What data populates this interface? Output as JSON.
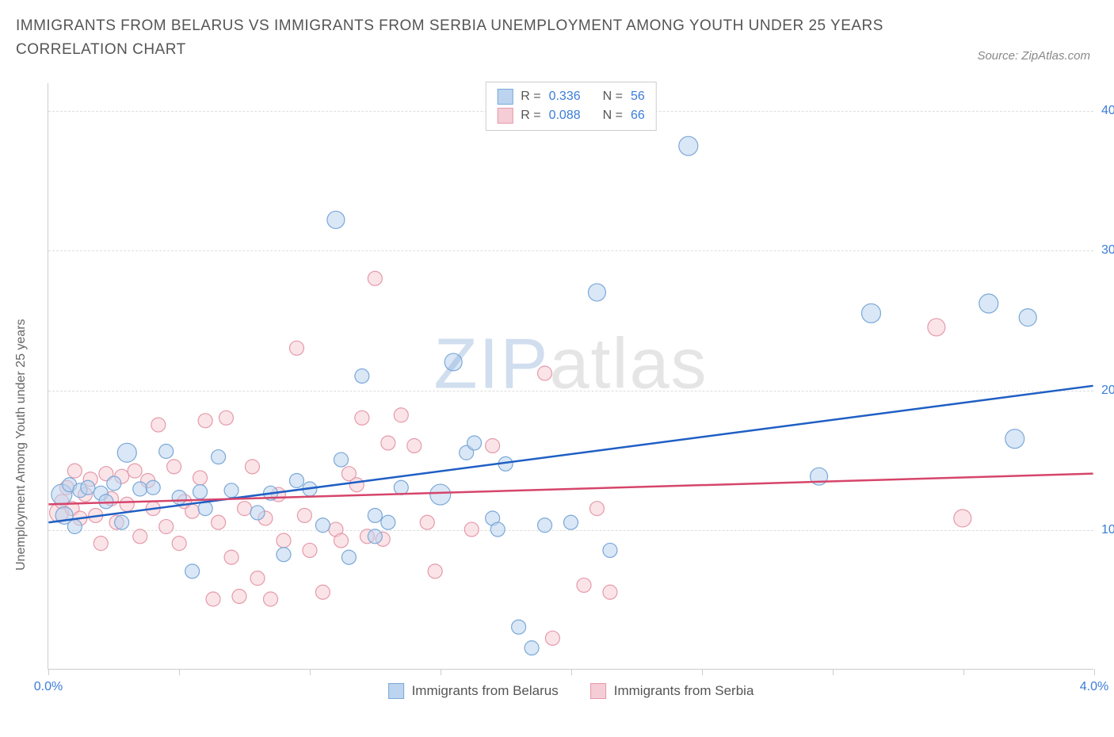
{
  "title": "IMMIGRANTS FROM BELARUS VS IMMIGRANTS FROM SERBIA UNEMPLOYMENT AMONG YOUTH UNDER 25 YEARS CORRELATION CHART",
  "source_label": "Source: ZipAtlas.com",
  "y_axis_label": "Unemployment Among Youth under 25 years",
  "watermark": {
    "zip": "ZIP",
    "atlas": "atlas"
  },
  "chart": {
    "type": "scatter",
    "xlim": [
      0.0,
      4.0
    ],
    "ylim": [
      0.0,
      42.0
    ],
    "x_ticks": [
      0.0,
      0.5,
      1.0,
      1.5,
      2.0,
      2.5,
      3.0,
      3.5,
      4.0
    ],
    "x_tick_labels": [
      "0.0%",
      "",
      "",
      "",
      "",
      "",
      "",
      "",
      "4.0%"
    ],
    "y_gridlines": [
      10.0,
      20.0,
      30.0,
      40.0
    ],
    "y_tick_labels": [
      "10.0%",
      "20.0%",
      "30.0%",
      "40.0%"
    ],
    "background_color": "#ffffff",
    "grid_color": "#dddddd",
    "axis_color": "#cccccc",
    "marker_radius": 9,
    "marker_radius_large": 13,
    "marker_opacity": 0.55,
    "line_width": 2.5,
    "series": [
      {
        "key": "belarus",
        "label": "Immigrants from Belarus",
        "color_fill": "#bcd4ef",
        "color_stroke": "#7aa8d8",
        "line_color": "#1f5fc4",
        "R": "0.336",
        "N": "56",
        "trend": {
          "x1": 0.0,
          "y1": 10.5,
          "x2": 4.0,
          "y2": 20.3
        },
        "points": [
          {
            "x": 0.05,
            "y": 12.5,
            "r": 13
          },
          {
            "x": 0.06,
            "y": 11.0,
            "r": 11
          },
          {
            "x": 0.08,
            "y": 13.2
          },
          {
            "x": 0.1,
            "y": 10.2
          },
          {
            "x": 0.12,
            "y": 12.8
          },
          {
            "x": 0.15,
            "y": 13.0
          },
          {
            "x": 0.2,
            "y": 12.6
          },
          {
            "x": 0.22,
            "y": 12.0
          },
          {
            "x": 0.25,
            "y": 13.3
          },
          {
            "x": 0.28,
            "y": 10.5
          },
          {
            "x": 0.3,
            "y": 15.5,
            "r": 12
          },
          {
            "x": 0.35,
            "y": 12.9
          },
          {
            "x": 0.4,
            "y": 13.0
          },
          {
            "x": 0.45,
            "y": 15.6
          },
          {
            "x": 0.5,
            "y": 12.3
          },
          {
            "x": 0.55,
            "y": 7.0
          },
          {
            "x": 0.58,
            "y": 12.7
          },
          {
            "x": 0.6,
            "y": 11.5
          },
          {
            "x": 0.65,
            "y": 15.2
          },
          {
            "x": 0.7,
            "y": 12.8
          },
          {
            "x": 0.8,
            "y": 11.2
          },
          {
            "x": 0.85,
            "y": 12.6
          },
          {
            "x": 0.9,
            "y": 8.2
          },
          {
            "x": 0.95,
            "y": 13.5
          },
          {
            "x": 1.0,
            "y": 12.9
          },
          {
            "x": 1.05,
            "y": 10.3
          },
          {
            "x": 1.1,
            "y": 32.2,
            "r": 11
          },
          {
            "x": 1.12,
            "y": 15.0
          },
          {
            "x": 1.15,
            "y": 8.0
          },
          {
            "x": 1.2,
            "y": 21.0
          },
          {
            "x": 1.25,
            "y": 9.5
          },
          {
            "x": 1.25,
            "y": 11.0
          },
          {
            "x": 1.3,
            "y": 10.5
          },
          {
            "x": 1.35,
            "y": 13.0
          },
          {
            "x": 1.5,
            "y": 12.5,
            "r": 13
          },
          {
            "x": 1.55,
            "y": 22.0,
            "r": 11
          },
          {
            "x": 1.6,
            "y": 15.5
          },
          {
            "x": 1.63,
            "y": 16.2
          },
          {
            "x": 1.7,
            "y": 10.8
          },
          {
            "x": 1.72,
            "y": 10.0
          },
          {
            "x": 1.75,
            "y": 14.7
          },
          {
            "x": 1.8,
            "y": 3.0
          },
          {
            "x": 1.85,
            "y": 1.5
          },
          {
            "x": 1.9,
            "y": 10.3
          },
          {
            "x": 2.0,
            "y": 10.5
          },
          {
            "x": 2.1,
            "y": 27.0,
            "r": 11
          },
          {
            "x": 2.15,
            "y": 8.5
          },
          {
            "x": 2.45,
            "y": 37.5,
            "r": 12
          },
          {
            "x": 2.95,
            "y": 13.8,
            "r": 11
          },
          {
            "x": 3.15,
            "y": 25.5,
            "r": 12
          },
          {
            "x": 3.6,
            "y": 26.2,
            "r": 12
          },
          {
            "x": 3.7,
            "y": 16.5,
            "r": 12
          },
          {
            "x": 3.75,
            "y": 25.2,
            "r": 11
          }
        ]
      },
      {
        "key": "serbia",
        "label": "Immigrants from Serbia",
        "color_fill": "#f5cdd6",
        "color_stroke": "#e59aaa",
        "line_color": "#d6456b",
        "R": "0.088",
        "N": "66",
        "trend": {
          "x1": 0.0,
          "y1": 11.8,
          "x2": 4.0,
          "y2": 14.0
        },
        "points": [
          {
            "x": 0.04,
            "y": 11.2,
            "r": 12
          },
          {
            "x": 0.05,
            "y": 12.0
          },
          {
            "x": 0.07,
            "y": 13.0
          },
          {
            "x": 0.09,
            "y": 11.5
          },
          {
            "x": 0.1,
            "y": 14.2
          },
          {
            "x": 0.12,
            "y": 10.8
          },
          {
            "x": 0.14,
            "y": 12.5
          },
          {
            "x": 0.16,
            "y": 13.6
          },
          {
            "x": 0.18,
            "y": 11.0
          },
          {
            "x": 0.2,
            "y": 9.0
          },
          {
            "x": 0.22,
            "y": 14.0
          },
          {
            "x": 0.24,
            "y": 12.2
          },
          {
            "x": 0.26,
            "y": 10.5
          },
          {
            "x": 0.28,
            "y": 13.8
          },
          {
            "x": 0.3,
            "y": 11.8
          },
          {
            "x": 0.33,
            "y": 14.2
          },
          {
            "x": 0.35,
            "y": 9.5
          },
          {
            "x": 0.38,
            "y": 13.5
          },
          {
            "x": 0.4,
            "y": 11.5
          },
          {
            "x": 0.42,
            "y": 17.5
          },
          {
            "x": 0.45,
            "y": 10.2
          },
          {
            "x": 0.48,
            "y": 14.5
          },
          {
            "x": 0.5,
            "y": 9.0
          },
          {
            "x": 0.52,
            "y": 12.0
          },
          {
            "x": 0.55,
            "y": 11.3
          },
          {
            "x": 0.58,
            "y": 13.7
          },
          {
            "x": 0.6,
            "y": 17.8
          },
          {
            "x": 0.63,
            "y": 5.0
          },
          {
            "x": 0.65,
            "y": 10.5
          },
          {
            "x": 0.68,
            "y": 18.0
          },
          {
            "x": 0.7,
            "y": 8.0
          },
          {
            "x": 0.73,
            "y": 5.2
          },
          {
            "x": 0.75,
            "y": 11.5
          },
          {
            "x": 0.78,
            "y": 14.5
          },
          {
            "x": 0.8,
            "y": 6.5
          },
          {
            "x": 0.83,
            "y": 10.8
          },
          {
            "x": 0.85,
            "y": 5.0
          },
          {
            "x": 0.88,
            "y": 12.5
          },
          {
            "x": 0.9,
            "y": 9.2
          },
          {
            "x": 0.95,
            "y": 23.0
          },
          {
            "x": 0.98,
            "y": 11.0
          },
          {
            "x": 1.0,
            "y": 8.5
          },
          {
            "x": 1.05,
            "y": 5.5
          },
          {
            "x": 1.1,
            "y": 10.0
          },
          {
            "x": 1.12,
            "y": 9.2
          },
          {
            "x": 1.15,
            "y": 14.0
          },
          {
            "x": 1.18,
            "y": 13.2
          },
          {
            "x": 1.2,
            "y": 18.0
          },
          {
            "x": 1.22,
            "y": 9.5
          },
          {
            "x": 1.25,
            "y": 28.0
          },
          {
            "x": 1.28,
            "y": 9.3
          },
          {
            "x": 1.3,
            "y": 16.2
          },
          {
            "x": 1.35,
            "y": 18.2
          },
          {
            "x": 1.4,
            "y": 16.0
          },
          {
            "x": 1.45,
            "y": 10.5
          },
          {
            "x": 1.48,
            "y": 7.0
          },
          {
            "x": 1.62,
            "y": 10.0
          },
          {
            "x": 1.7,
            "y": 16.0
          },
          {
            "x": 1.9,
            "y": 21.2
          },
          {
            "x": 1.93,
            "y": 2.2
          },
          {
            "x": 2.05,
            "y": 6.0
          },
          {
            "x": 2.1,
            "y": 11.5
          },
          {
            "x": 2.15,
            "y": 5.5
          },
          {
            "x": 3.4,
            "y": 24.5,
            "r": 11
          },
          {
            "x": 3.5,
            "y": 10.8,
            "r": 11
          }
        ]
      }
    ]
  },
  "legend_top": {
    "R_label": "R =",
    "N_label": "N ="
  }
}
